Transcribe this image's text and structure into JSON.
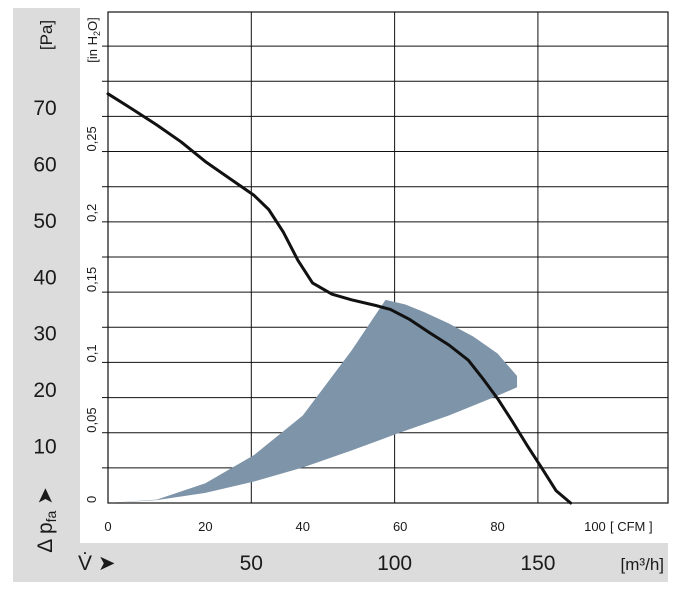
{
  "chart_data": {
    "type": "line",
    "title": "",
    "x_axis_cfm": {
      "unit": "[ CFM ]",
      "ticks": [
        "0",
        "20",
        "40",
        "60",
        "80",
        "100"
      ],
      "range": [
        0,
        115
      ]
    },
    "x_axis_m3h": {
      "unit": "[m³/h]",
      "ticks": [
        "50",
        "100",
        "150"
      ],
      "symbol": "V̇ ➤"
    },
    "y_axis_pa": {
      "unit": "[Pa]",
      "ticks": [
        "10",
        "20",
        "30",
        "40",
        "50",
        "60",
        "70"
      ],
      "range": [
        0,
        87
      ],
      "symbol": "Δ p"
    },
    "y_axis_inh2o": {
      "unit": "[in H",
      "unit_sub": "2",
      "unit_end": "O]",
      "ticks": [
        "0",
        "0,05",
        "0,1",
        "0,15",
        "0,2",
        "0,25"
      ]
    },
    "grid": true,
    "series": [
      {
        "x": [
          0,
          5,
          10,
          15,
          20,
          25,
          30,
          33,
          36,
          39,
          42,
          46,
          50,
          55,
          58,
          62,
          66,
          70,
          74,
          77,
          80,
          83,
          86,
          89,
          92,
          95
        ],
        "y": [
          72.5,
          69.8,
          67,
          64,
          60.5,
          57.5,
          54.5,
          52,
          48,
          43,
          39,
          37,
          36,
          35,
          34.3,
          32.5,
          30.2,
          28,
          25.3,
          22,
          18.5,
          14.5,
          10.3,
          6.3,
          2.2,
          0
        ]
      }
    ],
    "operating_range": {
      "upper_edge": {
        "x": [
          0,
          10,
          20,
          30,
          40,
          50,
          57,
          61,
          65,
          70,
          75,
          80,
          84
        ],
        "y": [
          0,
          0.6,
          3.5,
          8.5,
          15.5,
          27,
          36,
          35.2,
          33.8,
          31.8,
          29.5,
          26.5,
          22.5
        ]
      },
      "lower_edge": {
        "x": [
          0,
          10,
          20,
          30,
          40,
          50,
          60,
          70,
          80,
          84
        ],
        "y": [
          0,
          0.5,
          1.8,
          3.8,
          6.3,
          9.3,
          12.5,
          15.5,
          19,
          20.5
        ]
      }
    }
  }
}
